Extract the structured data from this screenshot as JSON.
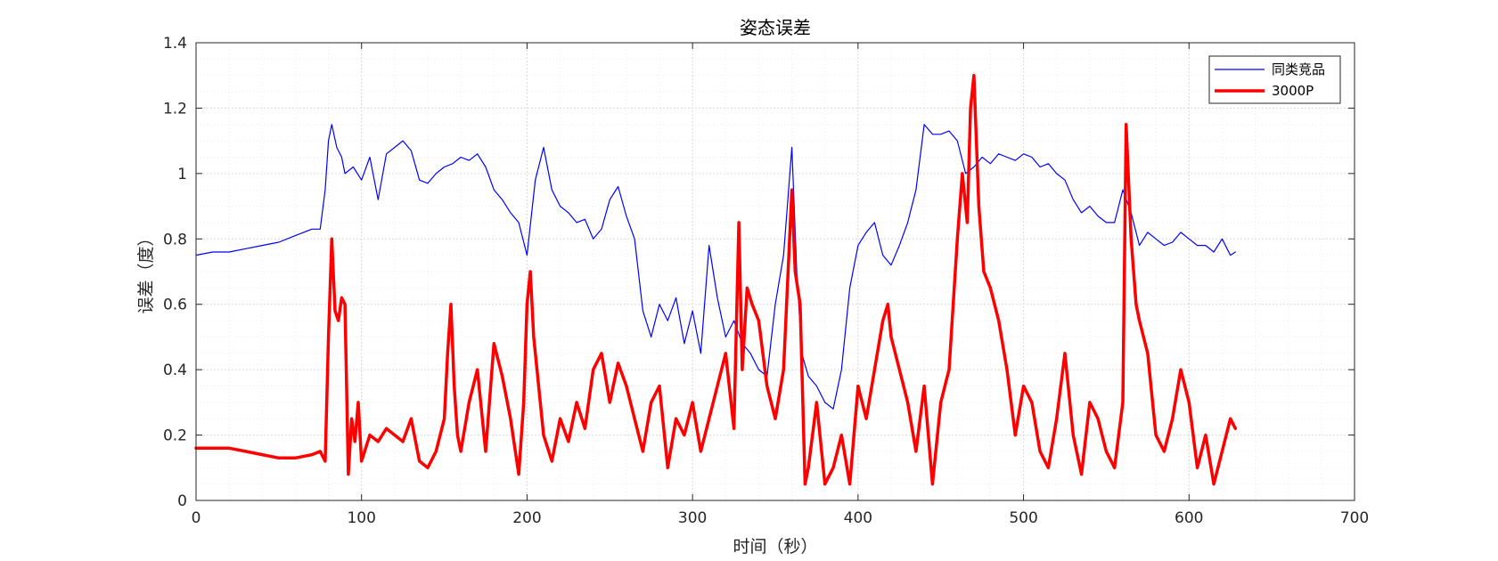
{
  "colors": {
    "series_blue": "#0000FF",
    "series_red": "#FF0000",
    "grid": "#E6E6E6",
    "axis": "#262626"
  },
  "chart_data": {
    "type": "line",
    "title": "姿态误差",
    "xlabel": "时间（秒）",
    "ylabel": "误差（度）",
    "xlim": [
      0,
      700
    ],
    "ylim": [
      0,
      1.4
    ],
    "xticks": [
      0,
      100,
      200,
      300,
      400,
      500,
      600,
      700
    ],
    "xtick_labels": [
      "0",
      "100",
      "200",
      "300",
      "400",
      "500",
      "600",
      "700"
    ],
    "yticks": [
      0,
      0.2,
      0.4,
      0.6,
      0.8,
      1,
      1.2,
      1.4
    ],
    "ytick_labels": [
      "0",
      "0.2",
      "0.4",
      "0.6",
      "0.8",
      "1",
      "1.2",
      "1.4"
    ],
    "grid": true,
    "minor_grid": true,
    "legend_position": "top-right",
    "series": [
      {
        "name": "同类竞品",
        "color": "#0000FF",
        "line": "thin",
        "x": [
          0,
          10,
          20,
          30,
          40,
          50,
          60,
          70,
          75,
          78,
          80,
          82,
          85,
          88,
          90,
          95,
          100,
          105,
          110,
          115,
          120,
          125,
          130,
          135,
          140,
          145,
          150,
          155,
          160,
          165,
          170,
          175,
          180,
          185,
          190,
          195,
          200,
          205,
          210,
          215,
          220,
          225,
          230,
          235,
          240,
          245,
          250,
          255,
          260,
          265,
          270,
          275,
          280,
          285,
          290,
          295,
          300,
          305,
          310,
          315,
          320,
          325,
          330,
          335,
          340,
          345,
          350,
          355,
          360,
          363,
          366,
          370,
          375,
          380,
          385,
          390,
          395,
          400,
          405,
          410,
          415,
          420,
          425,
          430,
          435,
          440,
          445,
          450,
          455,
          460,
          465,
          470,
          475,
          480,
          485,
          490,
          495,
          500,
          505,
          510,
          515,
          520,
          525,
          530,
          535,
          540,
          545,
          550,
          555,
          560,
          565,
          570,
          575,
          580,
          585,
          590,
          595,
          600,
          605,
          610,
          615,
          620,
          625,
          628
        ],
        "y": [
          0.75,
          0.76,
          0.76,
          0.77,
          0.78,
          0.79,
          0.81,
          0.83,
          0.83,
          0.95,
          1.1,
          1.15,
          1.08,
          1.05,
          1.0,
          1.02,
          0.98,
          1.05,
          0.92,
          1.06,
          1.08,
          1.1,
          1.07,
          0.98,
          0.97,
          1.0,
          1.02,
          1.03,
          1.05,
          1.04,
          1.06,
          1.02,
          0.95,
          0.92,
          0.88,
          0.85,
          0.75,
          0.98,
          1.08,
          0.95,
          0.9,
          0.88,
          0.85,
          0.86,
          0.8,
          0.83,
          0.92,
          0.96,
          0.87,
          0.8,
          0.58,
          0.5,
          0.6,
          0.55,
          0.62,
          0.48,
          0.58,
          0.45,
          0.78,
          0.62,
          0.5,
          0.55,
          0.48,
          0.45,
          0.4,
          0.38,
          0.6,
          0.75,
          1.08,
          0.7,
          0.45,
          0.38,
          0.35,
          0.3,
          0.28,
          0.4,
          0.65,
          0.78,
          0.82,
          0.85,
          0.75,
          0.72,
          0.78,
          0.85,
          0.95,
          1.15,
          1.12,
          1.12,
          1.13,
          1.1,
          1.0,
          1.02,
          1.05,
          1.03,
          1.06,
          1.05,
          1.04,
          1.06,
          1.05,
          1.02,
          1.03,
          1.0,
          0.98,
          0.92,
          0.88,
          0.9,
          0.87,
          0.85,
          0.85,
          0.95,
          0.88,
          0.78,
          0.82,
          0.8,
          0.78,
          0.79,
          0.82,
          0.8,
          0.78,
          0.78,
          0.76,
          0.8,
          0.75,
          0.76
        ]
      },
      {
        "name": "3000P",
        "color": "#FF0000",
        "line": "thick",
        "x": [
          0,
          10,
          20,
          30,
          40,
          50,
          60,
          70,
          75,
          78,
          80,
          82,
          84,
          86,
          88,
          90,
          92,
          94,
          96,
          98,
          100,
          105,
          110,
          115,
          120,
          125,
          130,
          135,
          140,
          145,
          150,
          152,
          154,
          156,
          158,
          160,
          165,
          170,
          175,
          180,
          185,
          190,
          195,
          198,
          200,
          202,
          204,
          206,
          208,
          210,
          215,
          220,
          225,
          230,
          235,
          240,
          245,
          250,
          255,
          260,
          265,
          270,
          275,
          280,
          285,
          290,
          295,
          300,
          305,
          310,
          315,
          320,
          325,
          328,
          330,
          333,
          336,
          340,
          345,
          350,
          355,
          360,
          362,
          365,
          368,
          370,
          375,
          380,
          385,
          390,
          395,
          400,
          405,
          410,
          415,
          418,
          420,
          425,
          430,
          435,
          440,
          445,
          450,
          455,
          460,
          463,
          466,
          468,
          470,
          473,
          476,
          480,
          485,
          490,
          495,
          500,
          505,
          510,
          515,
          520,
          525,
          530,
          535,
          540,
          545,
          550,
          555,
          560,
          562,
          565,
          568,
          570,
          575,
          580,
          585,
          590,
          595,
          600,
          605,
          610,
          615,
          620,
          625,
          628
        ],
        "y": [
          0.16,
          0.16,
          0.16,
          0.15,
          0.14,
          0.13,
          0.13,
          0.14,
          0.15,
          0.12,
          0.5,
          0.8,
          0.58,
          0.55,
          0.62,
          0.6,
          0.08,
          0.25,
          0.18,
          0.3,
          0.12,
          0.2,
          0.18,
          0.22,
          0.2,
          0.18,
          0.25,
          0.12,
          0.1,
          0.15,
          0.25,
          0.45,
          0.6,
          0.35,
          0.2,
          0.15,
          0.3,
          0.4,
          0.15,
          0.48,
          0.38,
          0.25,
          0.08,
          0.3,
          0.6,
          0.7,
          0.5,
          0.4,
          0.3,
          0.2,
          0.12,
          0.25,
          0.18,
          0.3,
          0.22,
          0.4,
          0.45,
          0.3,
          0.42,
          0.35,
          0.25,
          0.15,
          0.3,
          0.35,
          0.1,
          0.25,
          0.2,
          0.3,
          0.15,
          0.25,
          0.35,
          0.45,
          0.22,
          0.85,
          0.4,
          0.65,
          0.6,
          0.55,
          0.35,
          0.25,
          0.4,
          0.95,
          0.7,
          0.6,
          0.05,
          0.1,
          0.3,
          0.05,
          0.1,
          0.2,
          0.05,
          0.35,
          0.25,
          0.4,
          0.55,
          0.6,
          0.5,
          0.4,
          0.3,
          0.15,
          0.35,
          0.05,
          0.3,
          0.4,
          0.8,
          1.0,
          0.85,
          1.2,
          1.3,
          0.9,
          0.7,
          0.65,
          0.55,
          0.4,
          0.2,
          0.35,
          0.3,
          0.15,
          0.1,
          0.25,
          0.45,
          0.2,
          0.08,
          0.3,
          0.25,
          0.15,
          0.1,
          0.3,
          1.15,
          0.8,
          0.6,
          0.55,
          0.45,
          0.2,
          0.15,
          0.25,
          0.4,
          0.3,
          0.1,
          0.2,
          0.05,
          0.15,
          0.25,
          0.22
        ]
      }
    ]
  }
}
